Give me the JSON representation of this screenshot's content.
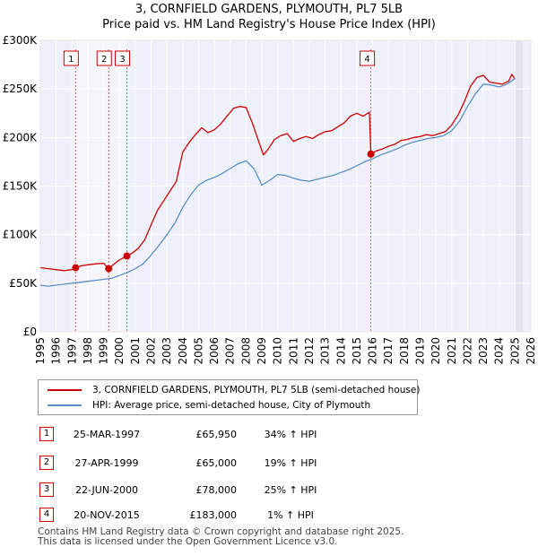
{
  "chart_data": {
    "type": "line",
    "title": "3, CORNFIELD GARDENS, PLYMOUTH, PL7 5LB",
    "subtitle": "Price paid vs. HM Land Registry's House Price Index (HPI)",
    "xlabel": "",
    "ylabel": "",
    "xlim": [
      1995,
      2026
    ],
    "ylim": [
      0,
      300000
    ],
    "y_ticks": [
      {
        "value": 0,
        "label": "£0"
      },
      {
        "value": 50000,
        "label": "£50K"
      },
      {
        "value": 100000,
        "label": "£100K"
      },
      {
        "value": 150000,
        "label": "£150K"
      },
      {
        "value": 200000,
        "label": "£200K"
      },
      {
        "value": 250000,
        "label": "£250K"
      },
      {
        "value": 300000,
        "label": "£300K"
      }
    ],
    "x_ticks": [
      "1995",
      "1996",
      "1997",
      "1998",
      "1999",
      "2000",
      "2001",
      "2002",
      "2003",
      "2004",
      "2005",
      "2006",
      "2007",
      "2008",
      "2009",
      "2010",
      "2011",
      "2012",
      "2013",
      "2014",
      "2015",
      "2016",
      "2017",
      "2018",
      "2019",
      "2020",
      "2021",
      "2022",
      "2023",
      "2024",
      "2025",
      "2026"
    ],
    "grid": true,
    "series": [
      {
        "name": "3, CORNFIELD GARDENS, PLYMOUTH, PL7 5LB (semi-detached house)",
        "color": "#cc0000",
        "x": [
          1995.0,
          1995.5,
          1996.0,
          1996.5,
          1997.0,
          1997.23,
          1997.6,
          1998.0,
          1998.5,
          1999.0,
          1999.32,
          1999.6,
          2000.0,
          2000.47,
          2000.8,
          2001.2,
          2001.6,
          2002.0,
          2002.4,
          2002.8,
          2003.2,
          2003.6,
          2004.0,
          2004.4,
          2004.8,
          2005.2,
          2005.6,
          2006.0,
          2006.4,
          2006.8,
          2007.2,
          2007.6,
          2008.0,
          2008.4,
          2008.8,
          2009.1,
          2009.4,
          2009.8,
          2010.2,
          2010.6,
          2011.0,
          2011.4,
          2011.8,
          2012.2,
          2012.6,
          2013.0,
          2013.4,
          2013.8,
          2014.2,
          2014.6,
          2015.0,
          2015.4,
          2015.8,
          2015.89,
          2016.2,
          2016.6,
          2017.0,
          2017.4,
          2017.8,
          2018.2,
          2018.6,
          2019.0,
          2019.4,
          2019.8,
          2020.2,
          2020.6,
          2021.0,
          2021.4,
          2021.8,
          2022.2,
          2022.6,
          2023.0,
          2023.4,
          2023.8,
          2024.2,
          2024.6,
          2024.8,
          2025.0
        ],
        "values": [
          66000,
          65000,
          64000,
          63000,
          64000,
          65950,
          68000,
          69000,
          70000,
          70500,
          65000,
          69000,
          74000,
          78000,
          81000,
          86000,
          95000,
          110000,
          125000,
          135000,
          145000,
          155000,
          185000,
          195000,
          203000,
          210000,
          205000,
          208000,
          214000,
          222000,
          230000,
          232000,
          231000,
          215000,
          196000,
          182000,
          188000,
          198000,
          202000,
          204000,
          196000,
          199000,
          201000,
          199000,
          203000,
          206000,
          207000,
          211000,
          215000,
          222000,
          225000,
          222000,
          226000,
          183000,
          186000,
          188000,
          191000,
          193000,
          197000,
          198000,
          200000,
          201000,
          203000,
          202000,
          204000,
          206000,
          213000,
          223000,
          237000,
          253000,
          262000,
          264000,
          257000,
          256000,
          255000,
          258000,
          265000,
          260000
        ]
      },
      {
        "name": "HPI: Average price, semi-detached house, City of Plymouth",
        "color": "#5b8ec4",
        "x": [
          1995.0,
          1995.5,
          1996.0,
          1996.5,
          1997.0,
          1997.5,
          1998.0,
          1998.5,
          1999.0,
          1999.5,
          2000.0,
          2000.5,
          2001.0,
          2001.5,
          2002.0,
          2002.5,
          2003.0,
          2003.5,
          2004.0,
          2004.5,
          2005.0,
          2005.5,
          2006.0,
          2006.5,
          2007.0,
          2007.5,
          2008.0,
          2008.5,
          2009.0,
          2009.5,
          2010.0,
          2010.5,
          2011.0,
          2011.5,
          2012.0,
          2012.5,
          2013.0,
          2013.5,
          2014.0,
          2014.5,
          2015.0,
          2015.5,
          2016.0,
          2016.5,
          2017.0,
          2017.5,
          2018.0,
          2018.5,
          2019.0,
          2019.5,
          2020.0,
          2020.5,
          2021.0,
          2021.5,
          2022.0,
          2022.5,
          2023.0,
          2023.5,
          2024.0,
          2024.5,
          2025.0
        ],
        "values": [
          48000,
          47000,
          48000,
          49000,
          50000,
          51000,
          52000,
          53000,
          54000,
          55000,
          58000,
          61000,
          65000,
          70000,
          79000,
          89000,
          100000,
          112000,
          128000,
          141000,
          151000,
          156000,
          159000,
          163000,
          168000,
          173000,
          176000,
          168000,
          151000,
          156000,
          162000,
          161000,
          158000,
          156000,
          155000,
          157000,
          159000,
          161000,
          164000,
          167000,
          171000,
          175000,
          178000,
          182000,
          185000,
          188000,
          192000,
          195000,
          197000,
          199000,
          200000,
          202000,
          207000,
          217000,
          232000,
          245000,
          255000,
          254000,
          252000,
          255000,
          261000
        ]
      }
    ],
    "sale_markers": [
      {
        "id": "1",
        "x": 1997.23,
        "value": 65950
      },
      {
        "id": "2",
        "x": 1999.32,
        "value": 65000
      },
      {
        "id": "3",
        "x": 2000.47,
        "value": 78000
      },
      {
        "id": "4",
        "x": 2015.89,
        "value": 183000
      }
    ]
  },
  "legend": {
    "items": [
      {
        "label": "3, CORNFIELD GARDENS, PLYMOUTH, PL7 5LB (semi-detached house)",
        "color": "#cc0000"
      },
      {
        "label": "HPI: Average price, semi-detached house, City of Plymouth",
        "color": "#5b8ec4"
      }
    ]
  },
  "transactions": [
    {
      "num": "1",
      "date": "25-MAR-1997",
      "price": "£65,950",
      "hpi": "34% ↑ HPI"
    },
    {
      "num": "2",
      "date": "27-APR-1999",
      "price": "£65,000",
      "hpi": "19% ↑ HPI"
    },
    {
      "num": "3",
      "date": "22-JUN-2000",
      "price": "£78,000",
      "hpi": "25% ↑ HPI"
    },
    {
      "num": "4",
      "date": "20-NOV-2015",
      "price": "£183,000",
      "hpi": "1% ↑ HPI"
    }
  ],
  "footer": {
    "line1": "Contains HM Land Registry data © Crown copyright and database right 2025.",
    "line2": "This data is licensed under the Open Government Licence v3.0."
  }
}
